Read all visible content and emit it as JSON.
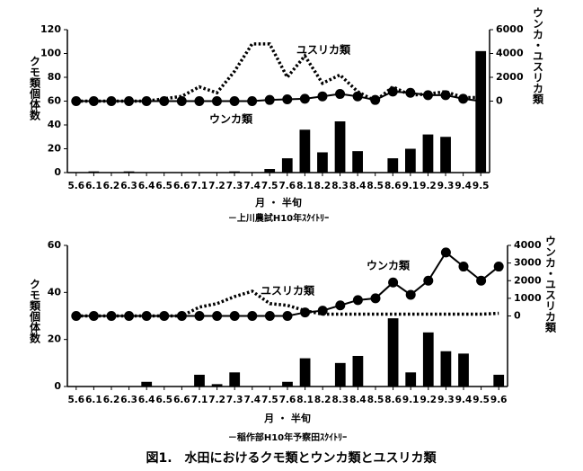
{
  "caption": "図1.　水田におけるクモ類とウンカ類とユスリカ類",
  "chart_data": [
    {
      "type": "bar",
      "subtitle": "－上川農試H10年ｽｸｲﾄﾘｰ",
      "x_label": "月 ・ 半旬",
      "y_label": "クモ類個体数",
      "y2_label": "ウンカ・ユスリカ類",
      "categories": [
        "5.6",
        "6.1",
        "6.2",
        "6.3",
        "6.4",
        "6.5",
        "6.6",
        "7.1",
        "7.2",
        "7.3",
        "7.4",
        "7.5",
        "7.6",
        "8.1",
        "8.2",
        "8.3",
        "8.4",
        "8.5",
        "8.6",
        "9.1",
        "9.2",
        "9.3",
        "9.4",
        "9.5"
      ],
      "ylim": [
        0,
        120
      ],
      "yticks": [
        0,
        20,
        40,
        60,
        80,
        100,
        120
      ],
      "y2lim": [
        -6000,
        6000
      ],
      "y2ticks": [
        0,
        2000,
        4000,
        6000
      ],
      "series": [
        {
          "type": "bar",
          "color": "#000000",
          "values": [
            0,
            1,
            0,
            1,
            0,
            0,
            0,
            0,
            0,
            1,
            0,
            3,
            12,
            36,
            17,
            43,
            18,
            0,
            12,
            20,
            32,
            30,
            0,
            102
          ]
        },
        {
          "type": "line",
          "name": "ウンカ類",
          "axis": "y2",
          "color": "#000000",
          "marker": "circle",
          "line_style": "solid",
          "values": [
            0,
            0,
            0,
            0,
            0,
            0,
            0,
            0,
            0,
            0,
            0,
            100,
            150,
            200,
            400,
            600,
            400,
            100,
            800,
            700,
            500,
            500,
            200,
            0
          ]
        },
        {
          "type": "line",
          "name": "ユスリカ類",
          "axis": "y2",
          "color": "#000000",
          "line_style": "dotted",
          "values": [
            0,
            0,
            0,
            0,
            0,
            200,
            400,
            1200,
            700,
            2500,
            4800,
            4800,
            2000,
            3800,
            1500,
            2200,
            800,
            0,
            1200,
            500,
            600,
            800,
            300,
            300
          ]
        }
      ]
    },
    {
      "type": "bar",
      "subtitle": "－稲作部H10年予察田ｽｸｲﾄﾘｰ",
      "x_label": "月 ・ 半旬",
      "y_label": "クモ類個体数",
      "y2_label": "ウンカ・ユスリカ類",
      "categories": [
        "5.6",
        "6.1",
        "6.2",
        "6.3",
        "6.4",
        "6.5",
        "6.6",
        "7.1",
        "7.2",
        "7.3",
        "7.4",
        "7.5",
        "7.6",
        "8.1",
        "8.2",
        "8.3",
        "8.4",
        "8.5",
        "8.6",
        "9.1",
        "9.2",
        "9.3",
        "9.4",
        "9.5",
        "9.6"
      ],
      "ylim": [
        0,
        60
      ],
      "yticks": [
        0,
        20,
        40,
        60
      ],
      "y2lim": [
        -4000,
        4000
      ],
      "y2ticks": [
        0,
        1000,
        2000,
        3000,
        4000
      ],
      "series": [
        {
          "type": "bar",
          "color": "#000000",
          "values": [
            0,
            0,
            0,
            0,
            2,
            0,
            0,
            5,
            1,
            6,
            0,
            0,
            2,
            12,
            0,
            10,
            13,
            0,
            29,
            6,
            23,
            15,
            14,
            0,
            5
          ]
        },
        {
          "type": "line",
          "name": "ウンカ類",
          "axis": "y2",
          "color": "#000000",
          "marker": "circle",
          "line_style": "solid",
          "values": [
            0,
            0,
            0,
            0,
            0,
            0,
            0,
            0,
            0,
            0,
            0,
            0,
            0,
            200,
            300,
            600,
            900,
            1000,
            1900,
            1200,
            2000,
            3600,
            2800,
            2000,
            2800
          ]
        },
        {
          "type": "line",
          "name": "ユスリカ類",
          "axis": "y2",
          "color": "#000000",
          "line_style": "dotted",
          "values": [
            0,
            0,
            0,
            0,
            0,
            0,
            0,
            500,
            700,
            1100,
            1400,
            700,
            600,
            300,
            100,
            100,
            100,
            100,
            100,
            100,
            100,
            100,
            100,
            100,
            150
          ]
        }
      ]
    }
  ]
}
